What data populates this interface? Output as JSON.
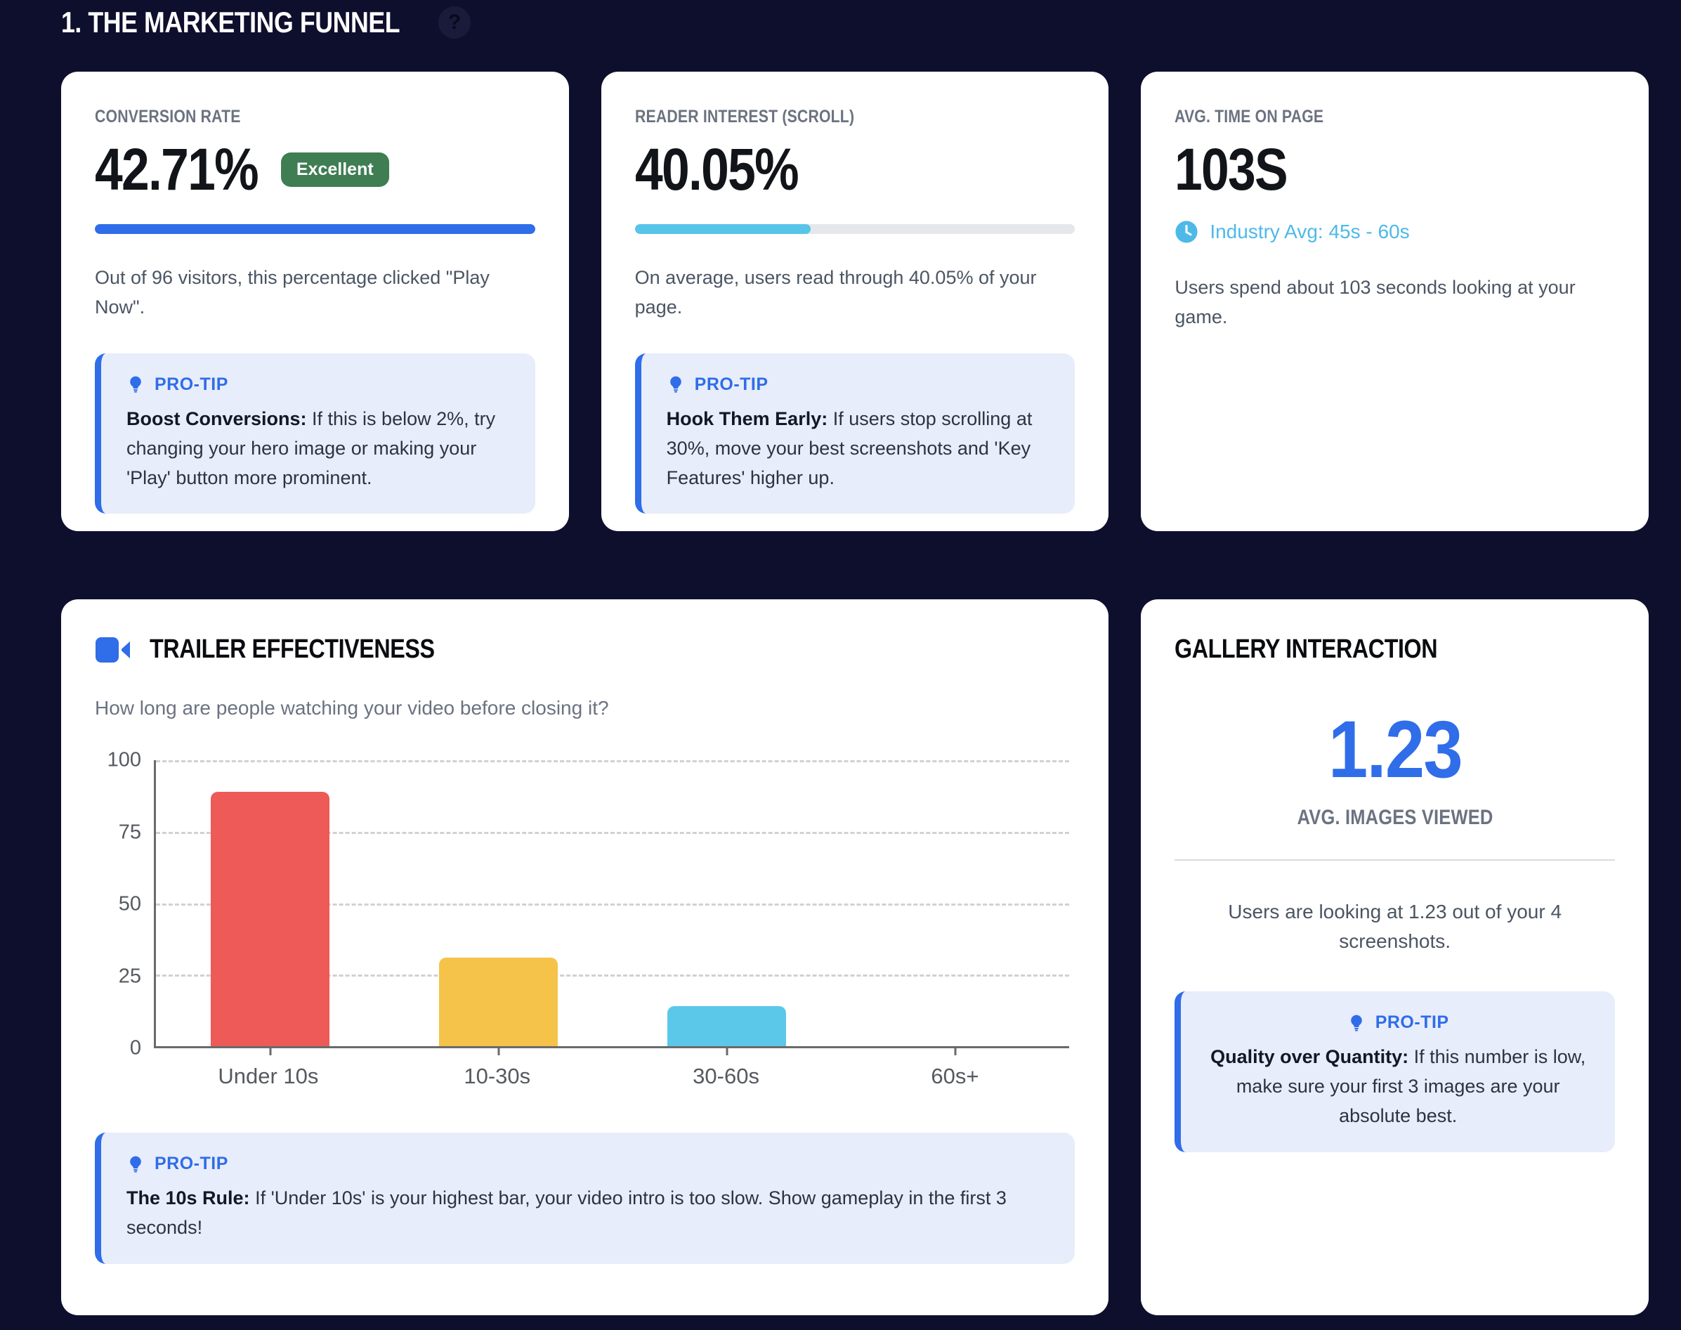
{
  "page": {
    "title": "1. THE MARKETING FUNNEL",
    "help": "?"
  },
  "colors": {
    "background": "#0e0f2d",
    "card": "#ffffff",
    "accent_blue": "#2f6de9",
    "cyan": "#58c5e8",
    "badge_green": "#3f7d53",
    "protip_bg": "#e8edfb",
    "bar_red": "#ed5a57",
    "bar_yellow": "#f5c349",
    "bar_cyan": "#5bc8ea"
  },
  "cards": {
    "conversion": {
      "label": "CONVERSION RATE",
      "value": "42.71%",
      "badge": "Excellent",
      "progress_pct": 100,
      "progress_color": "#2f6de9",
      "description": "Out of 96 visitors, this percentage clicked \"Play Now\".",
      "protip": {
        "label": "PRO-TIP",
        "bold": "Boost Conversions:",
        "text": " If this is below 2%, try changing your hero image or making your 'Play' button more prominent."
      }
    },
    "reader": {
      "label": "READER INTEREST (SCROLL)",
      "value": "40.05%",
      "progress_pct": 40,
      "progress_color": "#58c5e8",
      "description": "On average, users read through 40.05% of your page.",
      "protip": {
        "label": "PRO-TIP",
        "bold": "Hook Them Early:",
        "text": " If users stop scrolling at 30%, move your best screenshots and 'Key Features' higher up."
      }
    },
    "time": {
      "label": "AVG. TIME ON PAGE",
      "value": "103S",
      "industry_avg": "Industry Avg: 45s - 60s",
      "description": "Users spend about 103 seconds looking at your game."
    },
    "trailer": {
      "title": "TRAILER EFFECTIVENESS",
      "subtitle": "How long are people watching your video before closing it?",
      "protip": {
        "label": "PRO-TIP",
        "bold": "The 10s Rule:",
        "text": " If 'Under 10s' is your highest bar, your video intro is too slow. Show gameplay in the first 3 seconds!"
      }
    },
    "gallery": {
      "title": "GALLERY INTERACTION",
      "value": "1.23",
      "metric_label": "AVG. IMAGES VIEWED",
      "description": "Users are looking at 1.23 out of your 4 screenshots.",
      "protip": {
        "label": "PRO-TIP",
        "bold": "Quality over Quantity:",
        "text": " If this number is low, make sure your first 3 images are your absolute best."
      }
    }
  },
  "chart_data": {
    "type": "bar",
    "title": "Trailer Effectiveness",
    "subtitle": "How long are people watching your video before closing it?",
    "categories": [
      "Under 10s",
      "10-30s",
      "30-60s",
      "60s+"
    ],
    "values": [
      89,
      31,
      14,
      0
    ],
    "bar_colors": [
      "#ed5a57",
      "#f5c349",
      "#5bc8ea",
      "#5bc8ea"
    ],
    "xlabel": "",
    "ylabel": "",
    "ylim": [
      0,
      100
    ],
    "yticks": [
      0,
      25,
      50,
      75,
      100
    ],
    "grid": "dashed-horizontal",
    "legend": "none"
  }
}
